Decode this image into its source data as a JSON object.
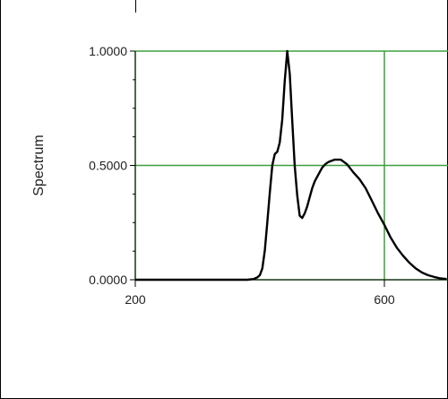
{
  "chart_data": {
    "type": "line",
    "title": "",
    "xlabel": "",
    "ylabel": "Spectrum",
    "xlim": [
      200,
      700
    ],
    "ylim": [
      0,
      1
    ],
    "x_ticks": [
      "200",
      "600"
    ],
    "y_ticks": [
      "0.0000",
      "0.5000",
      "1.0000"
    ],
    "grid": true,
    "colors": {
      "grid": "#3f9f3f",
      "line": "#000000",
      "axis": "#000000"
    },
    "series": [
      {
        "x": [
          200,
          380,
          390,
          396,
          400,
          404,
          408,
          412,
          416,
          420,
          424,
          428,
          432,
          436,
          440,
          444,
          448,
          452,
          456,
          460,
          464,
          468,
          472,
          476,
          480,
          484,
          488,
          492,
          496,
          500,
          505,
          510,
          515,
          520,
          530,
          540,
          550,
          560,
          570,
          580,
          590,
          600,
          610,
          620,
          630,
          640,
          650,
          660,
          670,
          680,
          690,
          700
        ],
        "y": [
          0,
          0,
          0.003,
          0.01,
          0.02,
          0.05,
          0.13,
          0.25,
          0.38,
          0.5,
          0.55,
          0.56,
          0.6,
          0.7,
          0.87,
          1.0,
          0.9,
          0.7,
          0.5,
          0.37,
          0.28,
          0.27,
          0.29,
          0.32,
          0.36,
          0.4,
          0.43,
          0.45,
          0.47,
          0.49,
          0.505,
          0.515,
          0.52,
          0.525,
          0.525,
          0.505,
          0.47,
          0.44,
          0.4,
          0.345,
          0.29,
          0.24,
          0.185,
          0.14,
          0.105,
          0.075,
          0.05,
          0.032,
          0.02,
          0.012,
          0.006,
          0.003
        ]
      }
    ]
  }
}
